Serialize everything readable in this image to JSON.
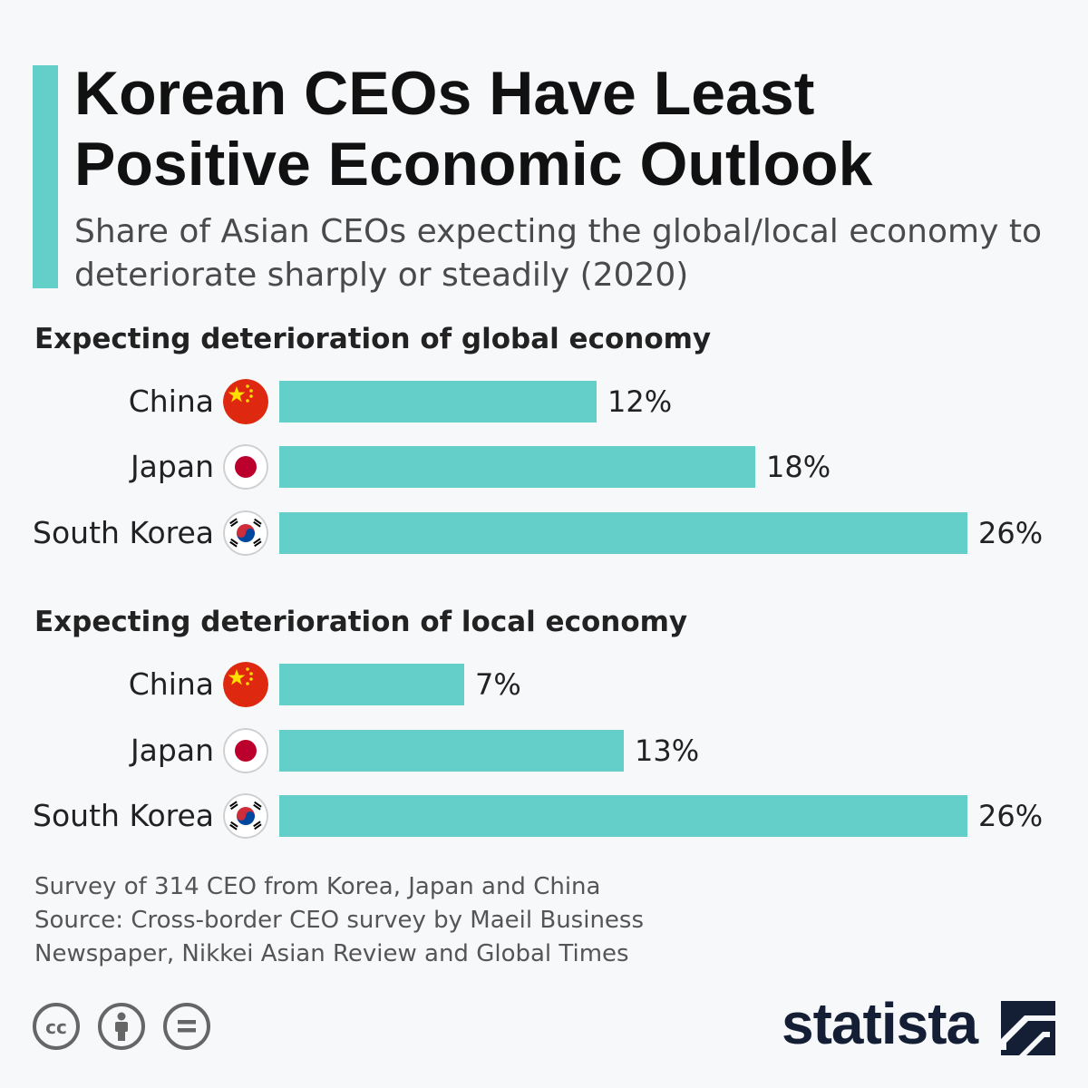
{
  "header": {
    "title": "Korean CEOs Have Least Positive Economic Outlook",
    "subtitle": "Share of Asian CEOs expecting the global/local economy to deteriorate sharply or steadily (2020)"
  },
  "colors": {
    "accent": "#64cfc8",
    "bar": "#64cfc8",
    "text": "#1b1b1b",
    "logo": "#141f36"
  },
  "chart_data": [
    {
      "type": "bar",
      "orientation": "horizontal",
      "title": "Expecting deterioration of global economy",
      "categories": [
        "China",
        "Japan",
        "South Korea"
      ],
      "values": [
        12,
        18,
        26
      ],
      "value_labels": [
        "12%",
        "18%",
        "26%"
      ],
      "flags": [
        "china-flag-icon",
        "japan-flag-icon",
        "south-korea-flag-icon"
      ],
      "xlim": [
        0,
        26
      ]
    },
    {
      "type": "bar",
      "orientation": "horizontal",
      "title": "Expecting deterioration of local economy",
      "categories": [
        "China",
        "Japan",
        "South Korea"
      ],
      "values": [
        7,
        13,
        26
      ],
      "value_labels": [
        "7%",
        "13%",
        "26%"
      ],
      "flags": [
        "china-flag-icon",
        "japan-flag-icon",
        "south-korea-flag-icon"
      ],
      "xlim": [
        0,
        26
      ]
    }
  ],
  "footer": {
    "note": "Survey of 314 CEO from Korea, Japan and China",
    "source": "Source: Cross-border CEO survey by Maeil Business Newspaper, Nikkei Asian Review and Global Times"
  },
  "license_icons": [
    "cc-icon",
    "attribution-icon",
    "no-derivatives-icon"
  ],
  "logo": {
    "text": "statista",
    "icon": "statista-logo-icon"
  }
}
